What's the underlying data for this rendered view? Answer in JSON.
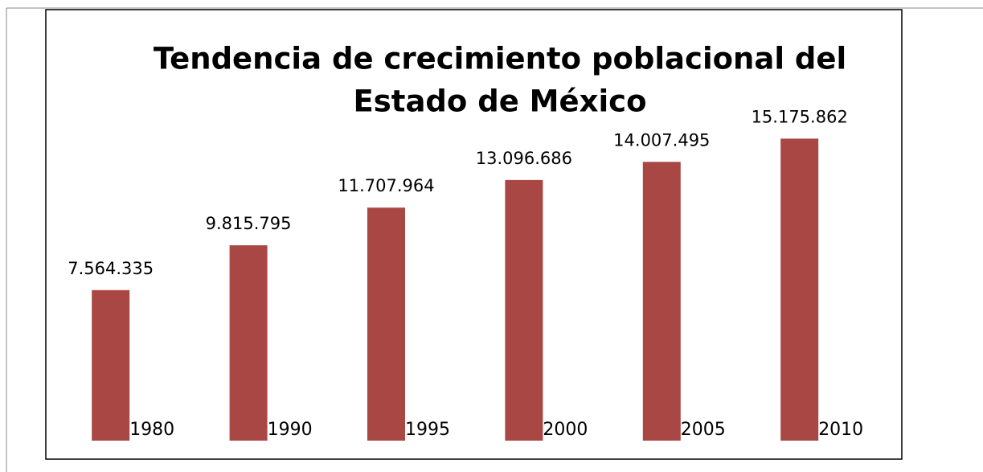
{
  "chart_data": {
    "type": "bar",
    "title": [
      "Tendencia de crecimiento poblacional del",
      "Estado de México"
    ],
    "categories": [
      "1980",
      "1990",
      "1995",
      "2000",
      "2005",
      "2010"
    ],
    "values": [
      7564335,
      9815795,
      11707964,
      13096686,
      14007495,
      15175862
    ],
    "value_labels": [
      "7.564.335",
      "9.815.795",
      "11.707.964",
      "13.096.686",
      "14.007.495",
      "15.175.862"
    ],
    "color": "#a94744",
    "ylim": [
      0,
      16000000
    ]
  }
}
